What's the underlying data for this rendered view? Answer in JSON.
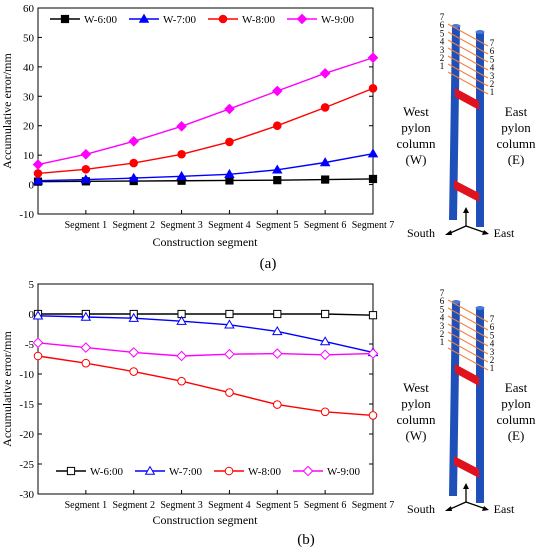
{
  "chart_data": [
    {
      "type": "line",
      "panel_label": "(a)",
      "xlabel": "Construction segment",
      "ylabel": "Accumulative error/mm",
      "categories": [
        "Segment 1",
        "Segment 2",
        "Segment 3",
        "Segment 4",
        "Segment 5",
        "Segment 6",
        "Segment 7"
      ],
      "x": [
        0,
        1,
        2,
        3,
        4,
        5,
        6,
        7
      ],
      "ylim": [
        -10,
        60
      ],
      "yticks": [
        -10,
        0,
        10,
        20,
        30,
        40,
        50,
        60
      ],
      "legend_position": "top",
      "series": [
        {
          "name": "W-6:00",
          "color": "#000000",
          "marker": "square-filled",
          "values": [
            1.0,
            1.1,
            1.2,
            1.3,
            1.4,
            1.5,
            1.7,
            1.9
          ]
        },
        {
          "name": "W-7:00",
          "color": "#0000ff",
          "marker": "triangle-filled",
          "values": [
            1.3,
            1.7,
            2.2,
            2.8,
            3.5,
            5.0,
            7.5,
            10.5
          ]
        },
        {
          "name": "W-8:00",
          "color": "#ff0000",
          "marker": "circle-filled",
          "values": [
            3.8,
            5.2,
            7.3,
            10.3,
            14.5,
            20.0,
            26.2,
            32.7
          ]
        },
        {
          "name": "W-9:00",
          "color": "#ff00ff",
          "marker": "diamond-filled",
          "values": [
            6.8,
            10.3,
            14.7,
            19.8,
            25.7,
            31.8,
            37.8,
            43.1
          ]
        }
      ]
    },
    {
      "type": "line",
      "panel_label": "(b)",
      "xlabel": "Construction segment",
      "ylabel": "Accumulative error/mm",
      "categories": [
        "Segment 1",
        "Segment 2",
        "Segment 3",
        "Segment 4",
        "Segment 5",
        "Segment 6",
        "Segment 7"
      ],
      "x": [
        0,
        1,
        2,
        3,
        4,
        5,
        6,
        7
      ],
      "ylim": [
        -30,
        5
      ],
      "yticks": [
        -30,
        -25,
        -20,
        -15,
        -10,
        -5,
        0,
        5
      ],
      "legend_position": "bottom",
      "series": [
        {
          "name": "W-6:00",
          "color": "#000000",
          "marker": "square-open",
          "values": [
            0.0,
            0.0,
            0.0,
            0.0,
            0.0,
            0.0,
            0.0,
            -0.2
          ]
        },
        {
          "name": "W-7:00",
          "color": "#0000ff",
          "marker": "triangle-open",
          "values": [
            -0.3,
            -0.5,
            -0.7,
            -1.2,
            -1.8,
            -2.9,
            -4.6,
            -6.4
          ]
        },
        {
          "name": "W-8:00",
          "color": "#ff0000",
          "marker": "circle-open",
          "values": [
            -7.0,
            -8.2,
            -9.6,
            -11.2,
            -13.1,
            -15.1,
            -16.3,
            -16.9
          ]
        },
        {
          "name": "W-9:00",
          "color": "#ff00ff",
          "marker": "diamond-open",
          "values": [
            -4.8,
            -5.6,
            -6.4,
            -7.0,
            -6.7,
            -6.6,
            -6.8,
            -6.6
          ]
        }
      ]
    }
  ],
  "diagram": {
    "west_label": [
      "West",
      "pylon",
      "column",
      "(W)"
    ],
    "east_label": [
      "East",
      "pylon",
      "column",
      "(E)"
    ],
    "south_label": "South",
    "east_dir_label": "East",
    "segment_numbers": [
      "7",
      "6",
      "5",
      "4",
      "3",
      "2",
      "1"
    ],
    "colors": {
      "column": "#1f4fb8",
      "beam": "#e0121e",
      "segment_line": "#f08040"
    }
  }
}
